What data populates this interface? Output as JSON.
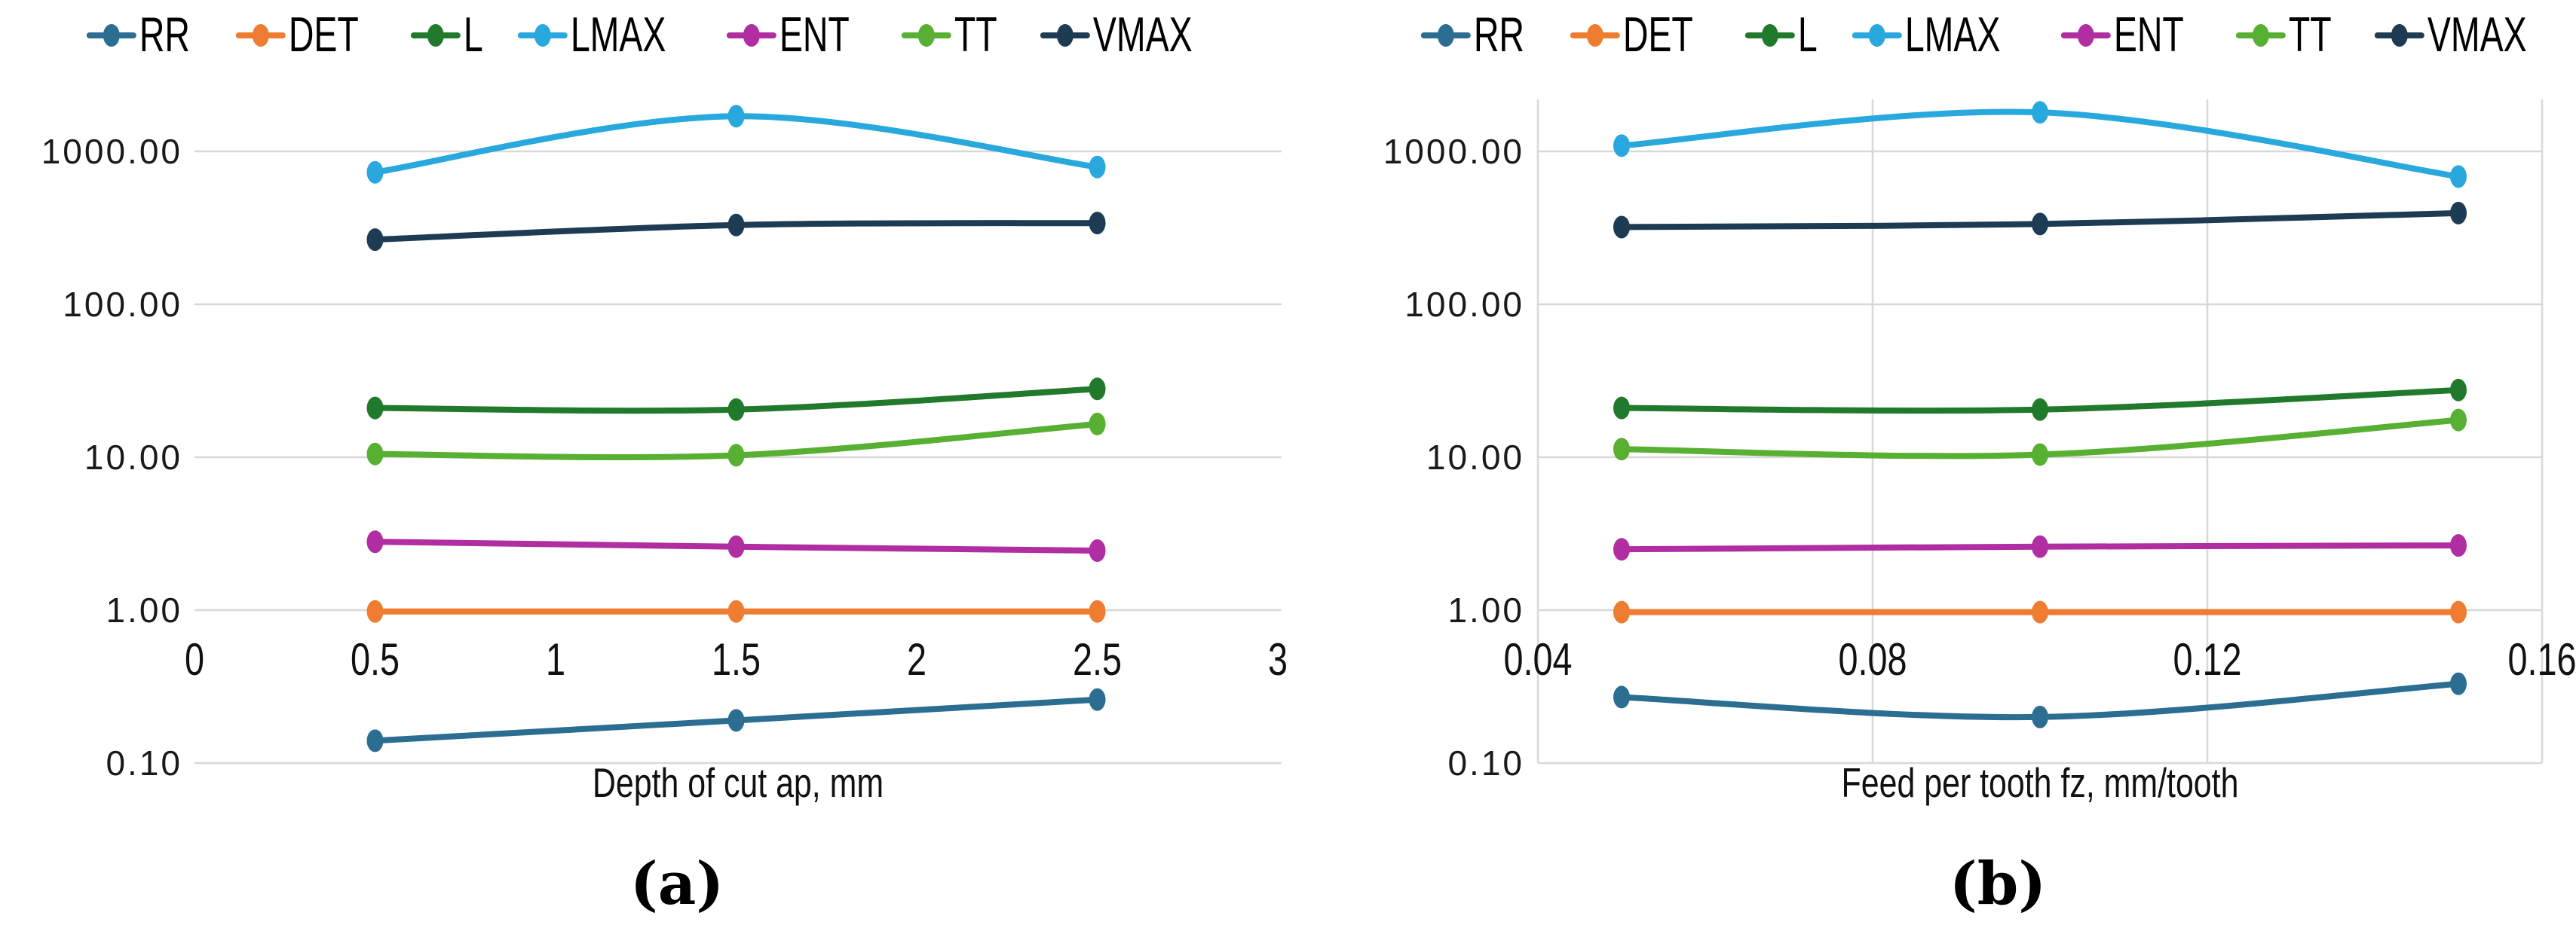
{
  "figure": {
    "background": "#FFFFFF",
    "gridline_color": "#D8D8D8",
    "text_color": "#111111"
  },
  "chart_data": [
    {
      "type": "line",
      "caption": "(a)",
      "x_label": "Depth of cut ap, mm",
      "y_scale": "log",
      "legend_position": "top",
      "grid": {
        "horizontal": true,
        "vertical": false
      },
      "xlim": [
        0,
        3
      ],
      "ylim": [
        0.1,
        1000
      ],
      "x_ticks": [
        "0",
        "0.5",
        "1",
        "1.5",
        "2",
        "2.5",
        "3"
      ],
      "x_tick_values": [
        0,
        0.5,
        1,
        1.5,
        2,
        2.5,
        3
      ],
      "y_ticks": [
        "1000.00",
        "100.00",
        "10.00",
        "1.00",
        "0.10"
      ],
      "y_tick_values": [
        1000,
        100,
        10,
        1,
        0.1
      ],
      "x": [
        0.5,
        1.5,
        2.5
      ],
      "series": [
        {
          "name": "RR",
          "color": "#2B6E91",
          "values": [
            0.14,
            0.19,
            0.26
          ]
        },
        {
          "name": "DET",
          "color": "#EE7D31",
          "values": [
            0.98,
            0.98,
            0.98
          ]
        },
        {
          "name": "L",
          "color": "#217A2B",
          "values": [
            21,
            20.5,
            28
          ]
        },
        {
          "name": "LMAX",
          "color": "#29A8DE",
          "values": [
            730,
            1700,
            790
          ]
        },
        {
          "name": "ENT",
          "color": "#B02EA2",
          "values": [
            2.8,
            2.6,
            2.45
          ]
        },
        {
          "name": "TT",
          "color": "#58B033",
          "values": [
            10.5,
            10.3,
            16.5
          ]
        },
        {
          "name": "VMAX",
          "color": "#1E3B54",
          "values": [
            265,
            330,
            340
          ]
        }
      ]
    },
    {
      "type": "line",
      "caption": "(b)",
      "x_label": "Feed per tooth fz, mm/tooth",
      "y_scale": "log",
      "legend_position": "top",
      "grid": {
        "horizontal": true,
        "vertical": true
      },
      "xlim": [
        0.04,
        0.16
      ],
      "ylim": [
        0.1,
        1000
      ],
      "x_ticks": [
        "0.04",
        "0.08",
        "0.12",
        "0.16"
      ],
      "x_tick_values": [
        0.04,
        0.08,
        0.12,
        0.16
      ],
      "y_ticks": [
        "1000.00",
        "100.00",
        "10.00",
        "1.00",
        "0.10"
      ],
      "y_tick_values": [
        1000,
        100,
        10,
        1,
        0.1
      ],
      "x": [
        0.05,
        0.1,
        0.15
      ],
      "series": [
        {
          "name": "RR",
          "color": "#2B6E91",
          "values": [
            0.27,
            0.2,
            0.33
          ]
        },
        {
          "name": "DET",
          "color": "#EE7D31",
          "values": [
            0.97,
            0.97,
            0.97
          ]
        },
        {
          "name": "L",
          "color": "#217A2B",
          "values": [
            21,
            20.5,
            27.5
          ]
        },
        {
          "name": "LMAX",
          "color": "#29A8DE",
          "values": [
            1090,
            1800,
            685
          ]
        },
        {
          "name": "ENT",
          "color": "#B02EA2",
          "values": [
            2.5,
            2.6,
            2.65
          ]
        },
        {
          "name": "TT",
          "color": "#58B033",
          "values": [
            11.3,
            10.4,
            17.5
          ]
        },
        {
          "name": "VMAX",
          "color": "#1E3B54",
          "values": [
            320,
            335,
            395
          ]
        }
      ]
    }
  ]
}
